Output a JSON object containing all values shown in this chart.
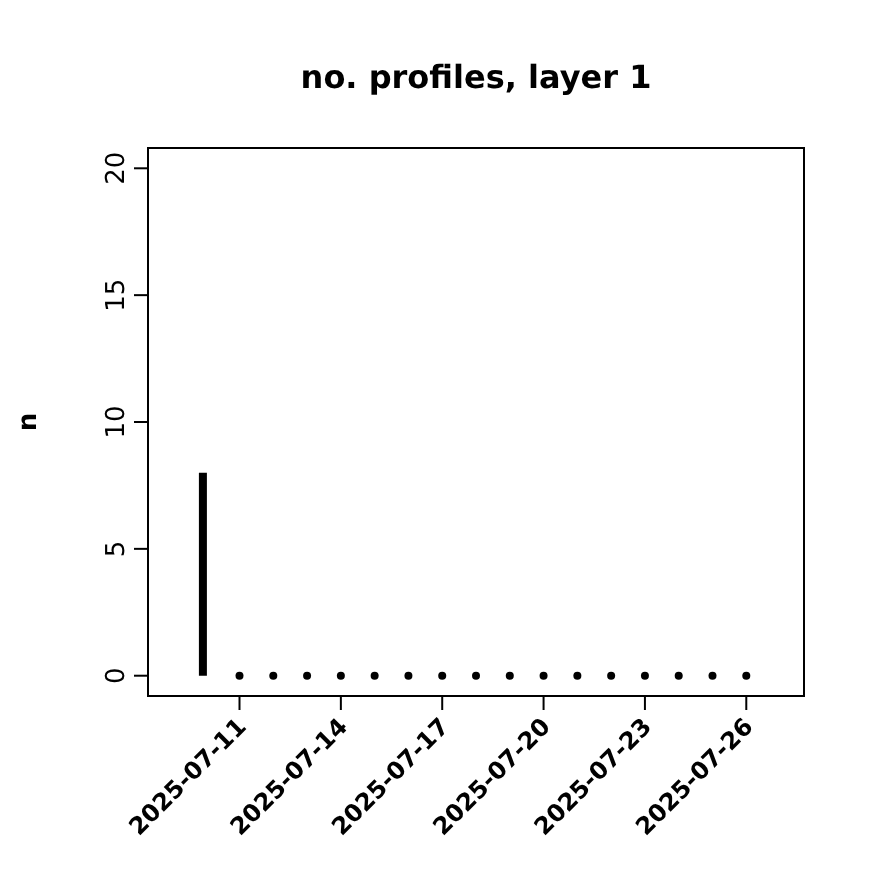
{
  "chart_data": {
    "type": "scatter",
    "title": "no. profiles, layer 1",
    "ylabel": "n",
    "xlim": [
      "2025-07-08T07:00",
      "2025-07-27T17:00"
    ],
    "xticks": [
      {
        "value": "2025-07-11",
        "label": "2025-07-11"
      },
      {
        "value": "2025-07-14",
        "label": "2025-07-14"
      },
      {
        "value": "2025-07-17",
        "label": "2025-07-17"
      },
      {
        "value": "2025-07-20",
        "label": "2025-07-20"
      },
      {
        "value": "2025-07-23",
        "label": "2025-07-23"
      },
      {
        "value": "2025-07-26",
        "label": "2025-07-26"
      }
    ],
    "ylim": [
      -0.8,
      20.8
    ],
    "yticks": [
      0,
      5,
      10,
      15,
      20
    ],
    "grid": false,
    "marker": "circle",
    "series": [
      {
        "type": "bar",
        "color": "#000000",
        "x": [
          "2025-07-09T22:00"
        ],
        "values": [
          8
        ]
      },
      {
        "color": "#000000",
        "x": [
          "2025-07-11",
          "2025-07-12",
          "2025-07-13",
          "2025-07-14",
          "2025-07-15",
          "2025-07-16",
          "2025-07-17",
          "2025-07-18",
          "2025-07-19",
          "2025-07-20",
          "2025-07-21",
          "2025-07-22",
          "2025-07-23",
          "2025-07-24",
          "2025-07-25",
          "2025-07-26"
        ],
        "values": [
          0,
          0,
          0,
          0,
          0,
          0,
          0,
          0,
          0,
          0,
          0,
          0,
          0,
          0,
          0,
          0
        ]
      }
    ]
  }
}
